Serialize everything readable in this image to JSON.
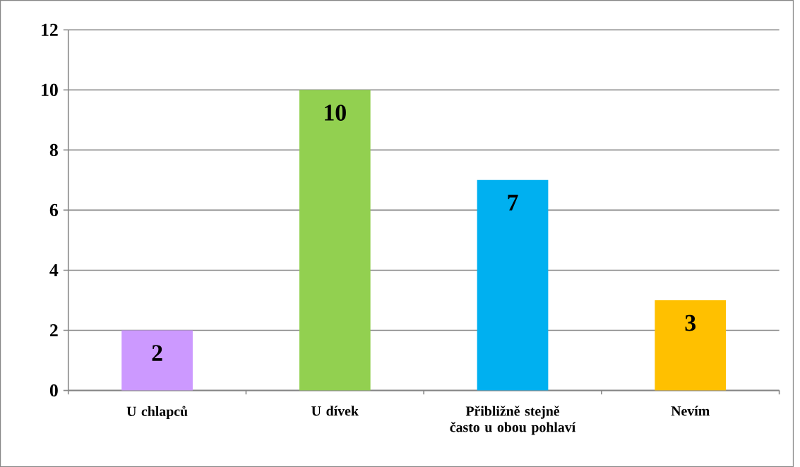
{
  "chart_data": {
    "type": "bar",
    "categories": [
      "U chlapců",
      "U dívek",
      "Přibližně stejně často u obou pohlaví",
      "Nevím"
    ],
    "values": [
      2,
      10,
      7,
      3
    ],
    "colors": [
      "#cc99ff",
      "#92d050",
      "#00b0f0",
      "#ffc000"
    ],
    "ylim": [
      0,
      12
    ],
    "yticks": [
      0,
      2,
      4,
      6,
      8,
      10,
      12
    ],
    "grid": "y",
    "data_labels": true
  }
}
